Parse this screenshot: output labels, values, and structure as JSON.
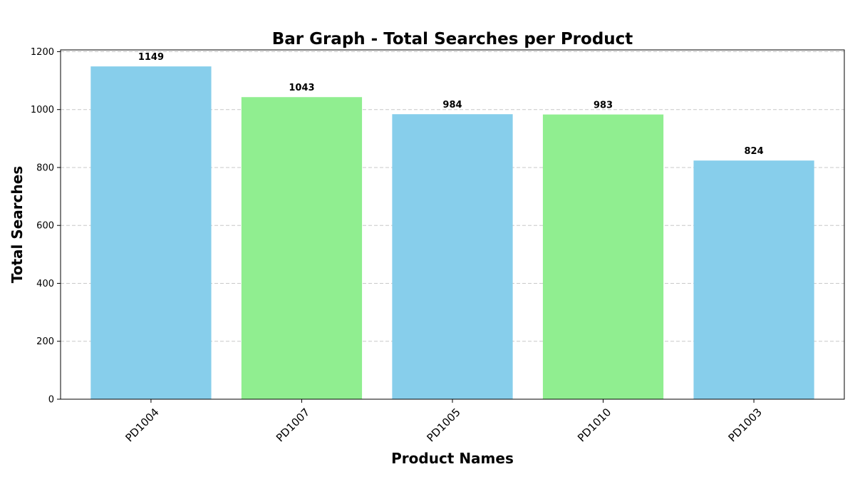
{
  "chart_data": {
    "type": "bar",
    "title": "Bar Graph - Total Searches per Product",
    "xlabel": "Product Names",
    "ylabel": "Total Searches",
    "categories": [
      "PD1004",
      "PD1007",
      "PD1005",
      "PD1010",
      "PD1003"
    ],
    "values": [
      1149,
      1043,
      984,
      983,
      824
    ],
    "value_labels": [
      "1149",
      "1043",
      "984",
      "983",
      "824"
    ],
    "bar_colors": [
      "#87ceeb",
      "#90ee90",
      "#87ceeb",
      "#90ee90",
      "#87ceeb"
    ],
    "ylim": [
      0,
      1206
    ],
    "yticks": [
      0,
      200,
      400,
      600,
      800,
      1000,
      1200
    ],
    "ytick_labels": [
      "0",
      "200",
      "400",
      "600",
      "800",
      "1000",
      "1200"
    ],
    "grid": "y-axis dashed",
    "legend": "none"
  }
}
